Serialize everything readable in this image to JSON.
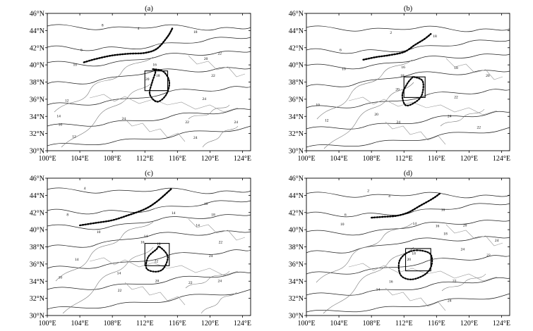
{
  "panels": [
    {
      "id": "a",
      "label": "(a)",
      "jet": [
        [
          104.5,
          40.3
        ],
        [
          106,
          40.7
        ],
        [
          108,
          41.1
        ],
        [
          110,
          41.3
        ],
        [
          112,
          41.4
        ],
        [
          113.5,
          41.9
        ],
        [
          114.8,
          43.3
        ],
        [
          115.4,
          44.3
        ]
      ],
      "cell": [
        [
          113,
          39.5
        ],
        [
          114.3,
          39.2
        ],
        [
          115,
          38
        ],
        [
          114.6,
          36.5
        ],
        [
          113.5,
          35.7
        ],
        [
          112.6,
          36.6
        ],
        [
          112.9,
          38
        ],
        [
          113.3,
          39.2
        ]
      ],
      "box": [
        112,
        37,
        114.8,
        39.3
      ],
      "labels": [
        {
          "t": "16",
          "x": 113.2,
          "y": 39.9
        },
        {
          "t": "20",
          "x": 112.3,
          "y": 38.2
        },
        {
          "t": "18",
          "x": 113.6,
          "y": 38.6
        },
        {
          "t": "18",
          "x": 118.2,
          "y": 43.7
        },
        {
          "t": "20",
          "x": 119.5,
          "y": 40.6
        },
        {
          "t": "22",
          "x": 121.2,
          "y": 41.2
        },
        {
          "t": "22",
          "x": 120.4,
          "y": 38.6
        },
        {
          "t": "24",
          "x": 119.3,
          "y": 35.9
        },
        {
          "t": "24",
          "x": 109.4,
          "y": 33.6
        },
        {
          "t": "22",
          "x": 117.2,
          "y": 33.2
        },
        {
          "t": "24",
          "x": 118.2,
          "y": 31.4
        },
        {
          "t": "24",
          "x": 123.2,
          "y": 33.2
        },
        {
          "t": "8",
          "x": 106.8,
          "y": 44.5
        },
        {
          "t": "4",
          "x": 111.2,
          "y": 44.1
        },
        {
          "t": "6",
          "x": 104.2,
          "y": 41.6
        },
        {
          "t": "10",
          "x": 103.4,
          "y": 39.9
        },
        {
          "t": "12",
          "x": 102.4,
          "y": 35.7
        },
        {
          "t": "14",
          "x": 101.4,
          "y": 33.9
        },
        {
          "t": "10",
          "x": 101.6,
          "y": 32.9
        },
        {
          "t": "12",
          "x": 103.3,
          "y": 31.5
        }
      ]
    },
    {
      "id": "b",
      "label": "(b)",
      "jet": [
        [
          107,
          40.6
        ],
        [
          108.5,
          40.9
        ],
        [
          110,
          41.1
        ],
        [
          112,
          41.5
        ],
        [
          113.3,
          42.3
        ],
        [
          114.5,
          43
        ],
        [
          115.3,
          43.6
        ]
      ],
      "cell": [
        [
          113.2,
          38.6
        ],
        [
          114.3,
          38.1
        ],
        [
          114.2,
          36.5
        ],
        [
          113.3,
          35.6
        ],
        [
          112.2,
          35.3
        ],
        [
          111.8,
          36.5
        ],
        [
          112.4,
          37.8
        ],
        [
          113,
          38.5
        ]
      ],
      "box": [
        112,
        36.2,
        114.6,
        38.6
      ],
      "labels": [
        {
          "t": "18",
          "x": 111.8,
          "y": 38.6
        },
        {
          "t": "20",
          "x": 111.2,
          "y": 37
        },
        {
          "t": "16",
          "x": 111.9,
          "y": 39.6
        },
        {
          "t": "18",
          "x": 118.4,
          "y": 39.5
        },
        {
          "t": "18",
          "x": 115.8,
          "y": 43.2
        },
        {
          "t": "20",
          "x": 122.3,
          "y": 38.6
        },
        {
          "t": "22",
          "x": 118.4,
          "y": 36.1
        },
        {
          "t": "24",
          "x": 117.6,
          "y": 33.9
        },
        {
          "t": "22",
          "x": 121.2,
          "y": 32.6
        },
        {
          "t": "24",
          "x": 111.3,
          "y": 33.2
        },
        {
          "t": "20",
          "x": 108.6,
          "y": 34.1
        },
        {
          "t": "12",
          "x": 102.5,
          "y": 33.4
        },
        {
          "t": "10",
          "x": 101.4,
          "y": 35.2
        },
        {
          "t": "10",
          "x": 104.6,
          "y": 39.4
        },
        {
          "t": "6",
          "x": 104.2,
          "y": 41.6
        },
        {
          "t": "2",
          "x": 110.4,
          "y": 43.6
        }
      ]
    },
    {
      "id": "c",
      "label": "(c)",
      "jet": [
        [
          104,
          40.5
        ],
        [
          106,
          40.8
        ],
        [
          108,
          41.1
        ],
        [
          110,
          41.7
        ],
        [
          112,
          42.4
        ],
        [
          113.5,
          43.3
        ],
        [
          115.3,
          44.8
        ]
      ],
      "cell": [
        [
          113.8,
          38
        ],
        [
          114.8,
          36.9
        ],
        [
          114.3,
          35.5
        ],
        [
          113.3,
          35.1
        ],
        [
          112.2,
          35.5
        ],
        [
          112.4,
          36.8
        ],
        [
          113.4,
          37.7
        ]
      ],
      "box": [
        112,
        35.8,
        115,
        38.4
      ],
      "labels": [
        {
          "t": "14",
          "x": 112.1,
          "y": 39.1
        },
        {
          "t": "16",
          "x": 111.7,
          "y": 38.4
        },
        {
          "t": "18",
          "x": 113.7,
          "y": 38.2
        },
        {
          "t": "22",
          "x": 113.4,
          "y": 36.2
        },
        {
          "t": "14",
          "x": 115.5,
          "y": 41.8
        },
        {
          "t": "14",
          "x": 118.5,
          "y": 40.4
        },
        {
          "t": "16",
          "x": 119.5,
          "y": 42.9
        },
        {
          "t": "18",
          "x": 120.4,
          "y": 41.6
        },
        {
          "t": "22",
          "x": 121.3,
          "y": 38.4
        },
        {
          "t": "24",
          "x": 120.1,
          "y": 36.8
        },
        {
          "t": "24",
          "x": 121.2,
          "y": 33.9
        },
        {
          "t": "22",
          "x": 117.6,
          "y": 33.7
        },
        {
          "t": "20",
          "x": 113.5,
          "y": 33.9
        },
        {
          "t": "14",
          "x": 108.8,
          "y": 34.8
        },
        {
          "t": "22",
          "x": 108.9,
          "y": 32.8
        },
        {
          "t": "14",
          "x": 103.6,
          "y": 36.4
        },
        {
          "t": "10",
          "x": 101.6,
          "y": 34.3
        },
        {
          "t": "10",
          "x": 106.3,
          "y": 39.6
        },
        {
          "t": "4",
          "x": 104.6,
          "y": 44.7
        },
        {
          "t": "8",
          "x": 102.5,
          "y": 41.6
        }
      ]
    },
    {
      "id": "d",
      "label": "(d)",
      "jet": [
        [
          108,
          41.4
        ],
        [
          109.5,
          41.5
        ],
        [
          111,
          41.6
        ],
        [
          112.5,
          42
        ],
        [
          114,
          42.8
        ],
        [
          115.5,
          43.6
        ],
        [
          116.4,
          44.2
        ]
      ],
      "cell": [
        [
          113.6,
          37.6
        ],
        [
          115.2,
          37.2
        ],
        [
          115.4,
          35.9
        ],
        [
          114.6,
          34.8
        ],
        [
          112.9,
          34.2
        ],
        [
          111.6,
          34.7
        ],
        [
          111.4,
          36.2
        ],
        [
          112.2,
          37.2
        ]
      ],
      "box": [
        112.2,
        35.2,
        115.3,
        37.8
      ],
      "labels": [
        {
          "t": "20",
          "x": 112.6,
          "y": 36.4
        },
        {
          "t": "18",
          "x": 113.2,
          "y": 37.1
        },
        {
          "t": "14",
          "x": 113.3,
          "y": 40.6
        },
        {
          "t": "16",
          "x": 116.8,
          "y": 42.2
        },
        {
          "t": "16",
          "x": 116.1,
          "y": 40.3
        },
        {
          "t": "18",
          "x": 117.1,
          "y": 39.4
        },
        {
          "t": "20",
          "x": 119.5,
          "y": 40.4
        },
        {
          "t": "24",
          "x": 119.2,
          "y": 37.6
        },
        {
          "t": "22",
          "x": 122.4,
          "y": 36.9
        },
        {
          "t": "24",
          "x": 123.4,
          "y": 38.6
        },
        {
          "t": "22",
          "x": 118.2,
          "y": 33.9
        },
        {
          "t": "24",
          "x": 117.6,
          "y": 31.6
        },
        {
          "t": "16",
          "x": 110.4,
          "y": 33.8
        },
        {
          "t": "14",
          "x": 108.8,
          "y": 32.9
        },
        {
          "t": "10",
          "x": 104.4,
          "y": 40.5
        },
        {
          "t": "6",
          "x": 104.8,
          "y": 41.6
        },
        {
          "t": "2",
          "x": 107.6,
          "y": 44.4
        },
        {
          "t": "4",
          "x": 110.2,
          "y": 43.8
        }
      ]
    }
  ],
  "axes": {
    "x_ticks": [
      "100°E",
      "104°E",
      "108°E",
      "112°E",
      "116°E",
      "120°E",
      "124°E"
    ],
    "y_ticks": [
      "30°N",
      "32°N",
      "34°N",
      "36°N",
      "38°N",
      "40°N",
      "42°N",
      "44°N",
      "46°N"
    ],
    "lon_range": [
      100,
      125
    ],
    "lat_range": [
      30,
      46
    ]
  }
}
